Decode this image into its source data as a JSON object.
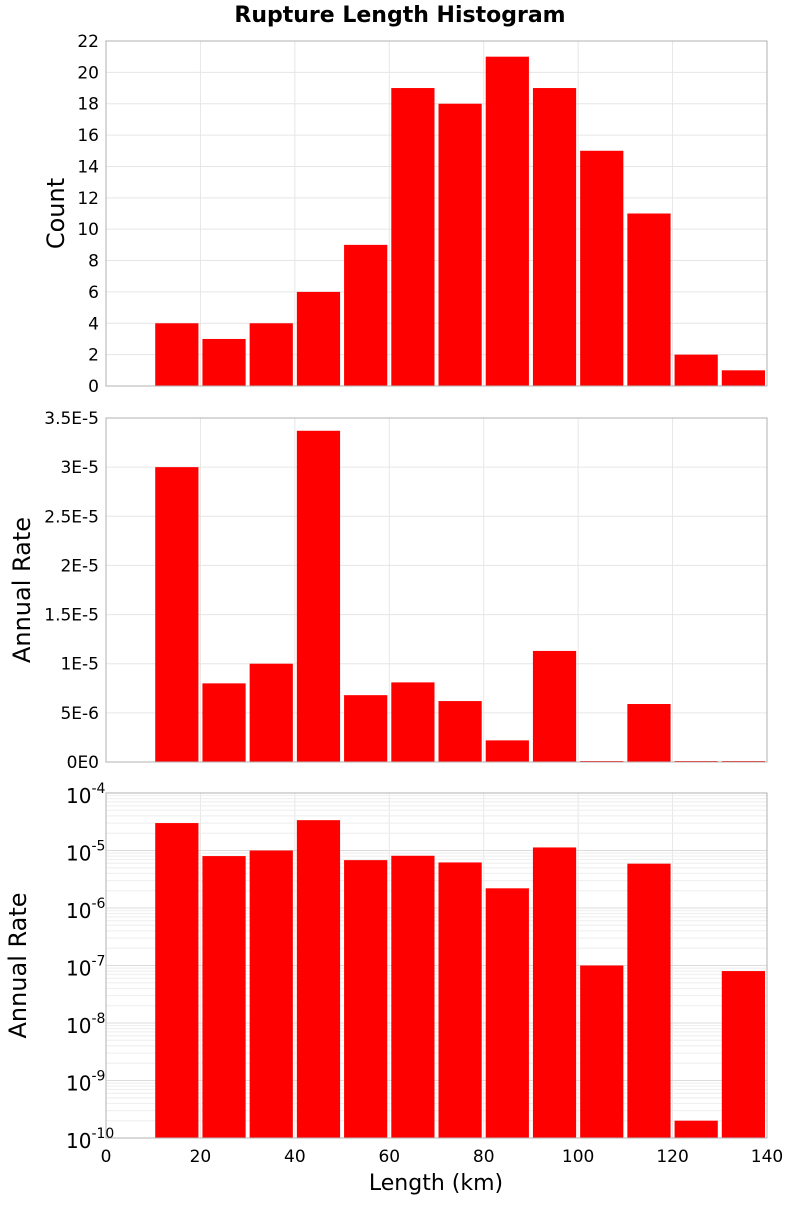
{
  "chart_data": [
    {
      "type": "bar",
      "title": "Rupture Length Histogram",
      "ylabel": "Count",
      "xlabel": "",
      "x_bin_centers": [
        15,
        25,
        35,
        45,
        55,
        65,
        75,
        85,
        95,
        105,
        115,
        125,
        135
      ],
      "values": [
        4,
        3,
        4,
        6,
        9,
        19,
        18,
        21,
        19,
        15,
        11,
        2,
        1
      ],
      "xlim": [
        0,
        140
      ],
      "ylim": [
        0,
        22
      ],
      "yticks": [
        0,
        2,
        4,
        6,
        8,
        10,
        12,
        14,
        16,
        18,
        20,
        22
      ],
      "ytick_labels": [
        "0",
        "2",
        "4",
        "6",
        "8",
        "10",
        "12",
        "14",
        "16",
        "18",
        "20",
        "22"
      ],
      "grid": true,
      "color": "#ff0000"
    },
    {
      "type": "bar",
      "title": "",
      "ylabel": "Annual Rate",
      "xlabel": "",
      "x_bin_centers": [
        15,
        25,
        35,
        45,
        55,
        65,
        75,
        85,
        95,
        105,
        115,
        125,
        135
      ],
      "values": [
        3e-05,
        8e-06,
        1e-05,
        3.37e-05,
        6.8e-06,
        8.1e-06,
        6.2e-06,
        2.2e-06,
        1.13e-05,
        1e-07,
        5.9e-06,
        2e-10,
        8e-08
      ],
      "xlim": [
        0,
        140
      ],
      "ylim": [
        0,
        3.5e-05
      ],
      "yticks": [
        0,
        5e-06,
        1e-05,
        1.5e-05,
        2e-05,
        2.5e-05,
        3e-05,
        3.5e-05
      ],
      "ytick_labels": [
        "0E0",
        "5E-6",
        "1E-5",
        "1.5E-5",
        "2E-5",
        "2.5E-5",
        "3E-5",
        "3.5E-5"
      ],
      "grid": true,
      "color": "#ff0000"
    },
    {
      "type": "bar",
      "title": "",
      "ylabel": "Annual Rate",
      "xlabel": "Length (km)",
      "yscale": "log",
      "x_bin_centers": [
        15,
        25,
        35,
        45,
        55,
        65,
        75,
        85,
        95,
        105,
        115,
        125,
        135
      ],
      "values": [
        3e-05,
        8e-06,
        1e-05,
        3.37e-05,
        6.8e-06,
        8.1e-06,
        6.2e-06,
        2.2e-06,
        1.13e-05,
        1e-07,
        5.9e-06,
        2e-10,
        8e-08
      ],
      "xlim": [
        0,
        140
      ],
      "ylim": [
        1e-10,
        0.0001
      ],
      "ytick_exponents": [
        -10,
        -9,
        -8,
        -7,
        -6,
        -5,
        -4
      ],
      "ytick_base": "10",
      "xticks": [
        0,
        20,
        40,
        60,
        80,
        100,
        120,
        140
      ],
      "xtick_labels": [
        "0",
        "20",
        "40",
        "60",
        "80",
        "100",
        "120",
        "140"
      ],
      "grid": true,
      "color": "#ff0000"
    }
  ]
}
